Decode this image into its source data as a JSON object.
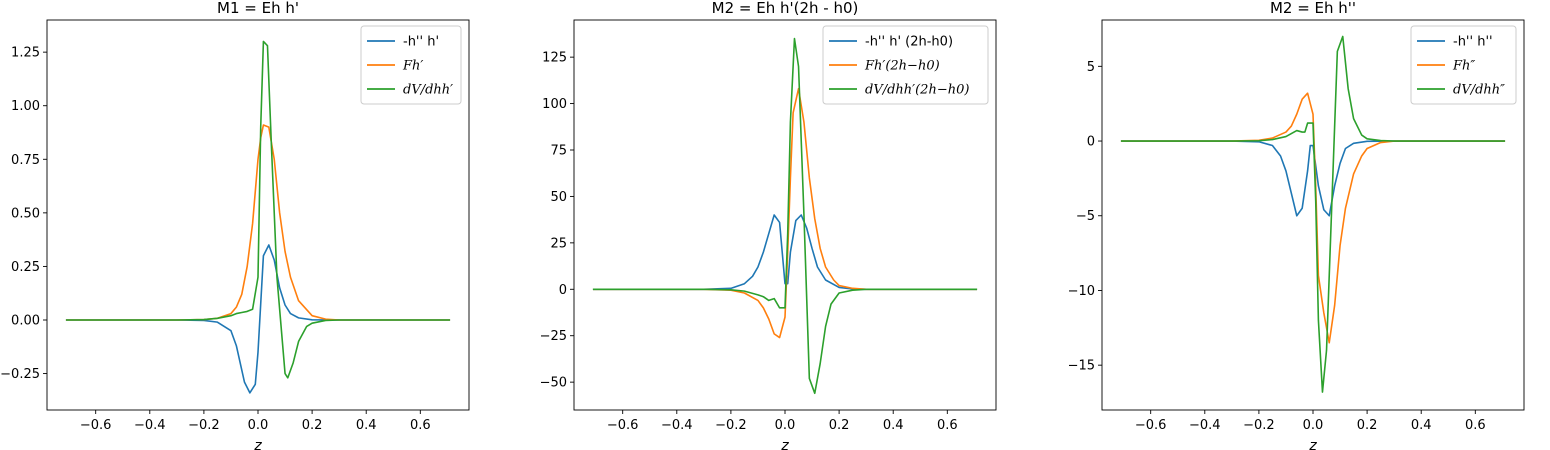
{
  "colors": {
    "blue": "#1f77b4",
    "orange": "#ff7f0e",
    "green": "#2ca02c"
  },
  "chart_data": [
    {
      "type": "line",
      "title": "M1 = Eh h'",
      "xlabel": "z",
      "ylabel": "",
      "xlim": [
        -0.78,
        0.78
      ],
      "ylim": [
        -0.42,
        1.4
      ],
      "xticks": [
        -0.6,
        -0.4,
        -0.2,
        0.0,
        0.2,
        0.4,
        0.6
      ],
      "xtick_labels": [
        "−0.6",
        "−0.4",
        "−0.2",
        "0.0",
        "0.2",
        "0.4",
        "0.6"
      ],
      "yticks": [
        -0.25,
        0.0,
        0.25,
        0.5,
        0.75,
        1.0,
        1.25
      ],
      "ytick_labels": [
        "−0.25",
        "0.00",
        "0.25",
        "0.50",
        "0.75",
        "1.00",
        "1.25"
      ],
      "legend_position": "top-right",
      "grid": false,
      "series": [
        {
          "name": "-h'' h'",
          "color": "#1f77b4",
          "x": [
            -0.71,
            -0.3,
            -0.2,
            -0.15,
            -0.1,
            -0.08,
            -0.05,
            -0.03,
            -0.01,
            0.0,
            0.02,
            0.04,
            0.06,
            0.08,
            0.1,
            0.12,
            0.15,
            0.2,
            0.3,
            0.71
          ],
          "y": [
            0,
            0,
            -0.002,
            -0.01,
            -0.05,
            -0.12,
            -0.29,
            -0.34,
            -0.3,
            -0.15,
            0.3,
            0.35,
            0.28,
            0.15,
            0.07,
            0.03,
            0.01,
            0.001,
            0,
            0
          ]
        },
        {
          "name": "Fh′",
          "color": "#ff7f0e",
          "x": [
            -0.71,
            -0.3,
            -0.2,
            -0.15,
            -0.1,
            -0.08,
            -0.06,
            -0.04,
            -0.02,
            0.0,
            0.01,
            0.02,
            0.04,
            0.06,
            0.08,
            0.1,
            0.12,
            0.15,
            0.2,
            0.25,
            0.3,
            0.71
          ],
          "y": [
            0,
            0,
            0.002,
            0.008,
            0.03,
            0.06,
            0.12,
            0.25,
            0.45,
            0.75,
            0.85,
            0.91,
            0.9,
            0.75,
            0.5,
            0.32,
            0.2,
            0.09,
            0.02,
            0.004,
            0,
            0
          ]
        },
        {
          "name": "dV/dhh′",
          "color": "#2ca02c",
          "x": [
            -0.71,
            -0.3,
            -0.2,
            -0.15,
            -0.1,
            -0.08,
            -0.06,
            -0.04,
            -0.02,
            0.0,
            0.01,
            0.02,
            0.035,
            0.05,
            0.07,
            0.09,
            0.1,
            0.11,
            0.13,
            0.15,
            0.18,
            0.2,
            0.25,
            0.3,
            0.71
          ],
          "y": [
            0,
            0,
            0.002,
            0.008,
            0.02,
            0.03,
            0.035,
            0.04,
            0.05,
            0.2,
            0.9,
            1.3,
            1.28,
            0.8,
            0.2,
            -0.1,
            -0.25,
            -0.27,
            -0.2,
            -0.1,
            -0.03,
            -0.015,
            -0.002,
            0,
            0
          ]
        }
      ]
    },
    {
      "type": "line",
      "title": "M2 = Eh h'(2h - h0)",
      "xlabel": "z",
      "ylabel": "",
      "xlim": [
        -0.78,
        0.78
      ],
      "ylim": [
        -65,
        145
      ],
      "xticks": [
        -0.6,
        -0.4,
        -0.2,
        0.0,
        0.2,
        0.4,
        0.6
      ],
      "xtick_labels": [
        "−0.6",
        "−0.4",
        "−0.2",
        "0.0",
        "0.2",
        "0.4",
        "0.6"
      ],
      "yticks": [
        -50,
        -25,
        0,
        25,
        50,
        75,
        100,
        125
      ],
      "ytick_labels": [
        "−50",
        "−25",
        "0",
        "25",
        "50",
        "75",
        "100",
        "125"
      ],
      "legend_position": "top-right",
      "grid": false,
      "series": [
        {
          "name": "-h'' h' (2h-h0)",
          "color": "#1f77b4",
          "x": [
            -0.71,
            -0.3,
            -0.2,
            -0.15,
            -0.12,
            -0.1,
            -0.08,
            -0.06,
            -0.04,
            -0.02,
            0.0,
            0.01,
            0.02,
            0.04,
            0.06,
            0.08,
            0.1,
            0.12,
            0.15,
            0.2,
            0.25,
            0.3,
            0.71
          ],
          "y": [
            0,
            0,
            0.5,
            3,
            7,
            12,
            20,
            30,
            40,
            36,
            3,
            3,
            20,
            37,
            40,
            33,
            22,
            12,
            5,
            1,
            0.2,
            0,
            0
          ]
        },
        {
          "name": "Fh′(2h−h0)",
          "color": "#ff7f0e",
          "x": [
            -0.71,
            -0.3,
            -0.2,
            -0.15,
            -0.1,
            -0.08,
            -0.06,
            -0.04,
            -0.02,
            0.0,
            0.01,
            0.02,
            0.03,
            0.05,
            0.07,
            0.09,
            0.11,
            0.13,
            0.15,
            0.18,
            0.2,
            0.25,
            0.3,
            0.71
          ],
          "y": [
            0,
            0,
            -0.5,
            -2,
            -6,
            -10,
            -16,
            -24,
            -26,
            -15,
            20,
            60,
            95,
            108,
            90,
            60,
            38,
            22,
            12,
            5,
            2,
            0.5,
            0,
            0
          ]
        },
        {
          "name": "dV/dhh′(2h−h0)",
          "color": "#2ca02c",
          "x": [
            -0.71,
            -0.3,
            -0.2,
            -0.15,
            -0.1,
            -0.08,
            -0.06,
            -0.04,
            -0.02,
            0.0,
            0.01,
            0.02,
            0.035,
            0.05,
            0.07,
            0.09,
            0.11,
            0.13,
            0.15,
            0.17,
            0.2,
            0.25,
            0.3,
            0.71
          ],
          "y": [
            0,
            0,
            -0.3,
            -1,
            -3,
            -4,
            -6,
            -5,
            -10,
            -10,
            30,
            90,
            135,
            120,
            40,
            -48,
            -56,
            -40,
            -20,
            -8,
            -2,
            -0.5,
            0,
            0
          ]
        }
      ]
    },
    {
      "type": "line",
      "title": "M2 = Eh h''",
      "xlabel": "z",
      "ylabel": "",
      "xlim": [
        -0.78,
        0.78
      ],
      "ylim": [
        -18,
        8.1
      ],
      "xticks": [
        -0.6,
        -0.4,
        -0.2,
        0.0,
        0.2,
        0.4,
        0.6
      ],
      "xtick_labels": [
        "−0.6",
        "−0.4",
        "−0.2",
        "0.0",
        "0.2",
        "0.4",
        "0.6"
      ],
      "yticks": [
        -15,
        -10,
        -5,
        0,
        5
      ],
      "ytick_labels": [
        "−15",
        "−10",
        "−5",
        "0",
        "5"
      ],
      "legend_position": "top-right",
      "grid": false,
      "series": [
        {
          "name": "-h'' h''",
          "color": "#1f77b4",
          "x": [
            -0.71,
            -0.3,
            -0.2,
            -0.15,
            -0.12,
            -0.1,
            -0.08,
            -0.06,
            -0.04,
            -0.02,
            -0.01,
            0.0,
            0.02,
            0.04,
            0.06,
            0.08,
            0.1,
            0.12,
            0.15,
            0.2,
            0.3,
            0.71
          ],
          "y": [
            0,
            0,
            -0.05,
            -0.3,
            -1,
            -2,
            -3.5,
            -5,
            -4.5,
            -2,
            -0.3,
            -0.3,
            -3,
            -4.6,
            -5,
            -3,
            -1.5,
            -0.5,
            -0.15,
            -0.02,
            0,
            0
          ]
        },
        {
          "name": "Fh″",
          "color": "#ff7f0e",
          "x": [
            -0.71,
            -0.3,
            -0.2,
            -0.15,
            -0.1,
            -0.08,
            -0.06,
            -0.04,
            -0.02,
            0.0,
            0.01,
            0.02,
            0.04,
            0.06,
            0.08,
            0.1,
            0.12,
            0.15,
            0.18,
            0.2,
            0.25,
            0.3,
            0.71
          ],
          "y": [
            0,
            0,
            0.05,
            0.2,
            0.6,
            1,
            1.8,
            2.8,
            3.2,
            1.8,
            -3,
            -9,
            -11.5,
            -13.5,
            -11,
            -7,
            -4.5,
            -2.2,
            -1,
            -0.5,
            -0.1,
            0,
            0
          ]
        },
        {
          "name": "dV/dhh″",
          "color": "#2ca02c",
          "x": [
            -0.71,
            -0.3,
            -0.2,
            -0.15,
            -0.1,
            -0.08,
            -0.06,
            -0.04,
            -0.03,
            -0.02,
            0.0,
            0.01,
            0.02,
            0.035,
            0.05,
            0.07,
            0.09,
            0.11,
            0.13,
            0.15,
            0.18,
            0.2,
            0.25,
            0.3,
            0.71
          ],
          "y": [
            0,
            0,
            0.02,
            0.1,
            0.3,
            0.5,
            0.7,
            0.6,
            0.6,
            1.2,
            1.2,
            -4,
            -12,
            -16.8,
            -14,
            -4,
            6,
            7,
            3.5,
            1.5,
            0.4,
            0.15,
            0.03,
            0,
            0
          ]
        }
      ]
    }
  ]
}
